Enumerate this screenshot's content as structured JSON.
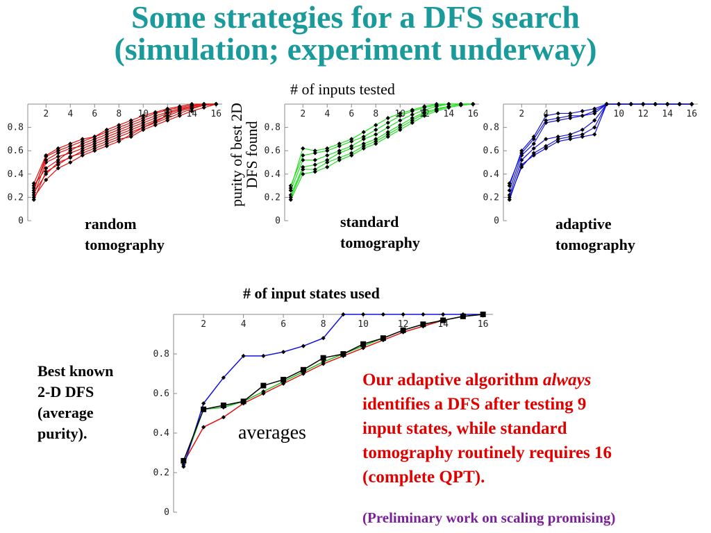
{
  "title": {
    "line1": "Some strategies for a DFS search",
    "line2": "(simulation; experiment underway)"
  },
  "top_axis_label": "# of inputs tested",
  "rotated_ylabel": {
    "line1": "purity of best 2D",
    "line2": "DFS found"
  },
  "top_panels": [
    {
      "label_line1": "random",
      "label_line2": "tomography",
      "color": "#e01010"
    },
    {
      "label_line1": "standard",
      "label_line2": "tomography",
      "color": "#20e020"
    },
    {
      "label_line1": "adaptive",
      "label_line2": "tomography",
      "color": "#1010e0"
    }
  ],
  "bottom_axis_label": "# of input states used",
  "bottom_ylabel": {
    "line1": "Best known",
    "line2": "2-D DFS",
    "line3": "(average",
    "line4": "purity)."
  },
  "averages_label": "averages",
  "conclusion": {
    "part1": "Our adaptive algorithm ",
    "emph": "always",
    "line2": "identifies a DFS after testing 9",
    "line3": "input states, while standard",
    "line4": "tomography routinely requires 16",
    "line5": "(complete QPT)."
  },
  "note": "(Preliminary work on scaling promising)",
  "chart_data": [
    {
      "type": "line",
      "name": "random tomography",
      "x": [
        1,
        2,
        3,
        4,
        5,
        6,
        7,
        8,
        9,
        10,
        11,
        12,
        13,
        14,
        15,
        16
      ],
      "ylim": [
        0,
        1
      ],
      "xticks": [
        2,
        4,
        6,
        8,
        10,
        12,
        14,
        16
      ],
      "yticks": [
        0,
        0.2,
        0.4,
        0.6,
        0.8
      ],
      "series": [
        {
          "values": [
            0.18,
            0.42,
            0.48,
            0.55,
            0.58,
            0.62,
            0.66,
            0.7,
            0.72,
            0.78,
            0.82,
            0.86,
            0.9,
            0.94,
            0.97,
            1.0
          ]
        },
        {
          "values": [
            0.22,
            0.5,
            0.55,
            0.58,
            0.62,
            0.66,
            0.7,
            0.74,
            0.78,
            0.82,
            0.86,
            0.9,
            0.94,
            0.97,
            0.99,
            1.0
          ]
        },
        {
          "values": [
            0.26,
            0.55,
            0.6,
            0.64,
            0.68,
            0.72,
            0.76,
            0.8,
            0.84,
            0.88,
            0.92,
            0.95,
            0.97,
            0.99,
            1.0,
            1.0
          ]
        },
        {
          "values": [
            0.3,
            0.45,
            0.52,
            0.6,
            0.66,
            0.7,
            0.74,
            0.78,
            0.82,
            0.86,
            0.9,
            0.93,
            0.96,
            0.98,
            1.0,
            1.0
          ]
        },
        {
          "values": [
            0.2,
            0.35,
            0.45,
            0.5,
            0.56,
            0.6,
            0.64,
            0.68,
            0.74,
            0.8,
            0.85,
            0.9,
            0.94,
            0.97,
            0.99,
            1.0
          ]
        },
        {
          "values": [
            0.32,
            0.56,
            0.62,
            0.66,
            0.7,
            0.72,
            0.78,
            0.82,
            0.86,
            0.9,
            0.93,
            0.96,
            0.98,
            1.0,
            1.0,
            1.0
          ]
        },
        {
          "values": [
            0.24,
            0.4,
            0.5,
            0.54,
            0.6,
            0.64,
            0.68,
            0.72,
            0.76,
            0.8,
            0.84,
            0.88,
            0.92,
            0.96,
            0.99,
            1.0
          ]
        },
        {
          "values": [
            0.28,
            0.52,
            0.58,
            0.62,
            0.64,
            0.68,
            0.72,
            0.76,
            0.8,
            0.84,
            0.88,
            0.92,
            0.95,
            0.98,
            1.0,
            1.0
          ]
        }
      ]
    },
    {
      "type": "line",
      "name": "standard tomography",
      "x": [
        1,
        2,
        3,
        4,
        5,
        6,
        7,
        8,
        9,
        10,
        11,
        12,
        13,
        14,
        15,
        16
      ],
      "ylim": [
        0,
        1
      ],
      "xticks": [
        2,
        4,
        6,
        8,
        10,
        12,
        14,
        16
      ],
      "yticks": [
        0,
        0.2,
        0.4,
        0.6,
        0.8
      ],
      "series": [
        {
          "values": [
            0.18,
            0.4,
            0.42,
            0.46,
            0.52,
            0.56,
            0.62,
            0.66,
            0.72,
            0.78,
            0.84,
            0.9,
            0.94,
            0.97,
            0.99,
            1.0
          ]
        },
        {
          "values": [
            0.22,
            0.46,
            0.48,
            0.52,
            0.58,
            0.62,
            0.66,
            0.7,
            0.76,
            0.82,
            0.88,
            0.93,
            0.96,
            0.98,
            1.0,
            1.0
          ]
        },
        {
          "values": [
            0.26,
            0.52,
            0.52,
            0.56,
            0.6,
            0.64,
            0.7,
            0.74,
            0.8,
            0.86,
            0.91,
            0.95,
            0.98,
            1.0,
            1.0,
            1.0
          ]
        },
        {
          "values": [
            0.3,
            0.56,
            0.58,
            0.6,
            0.64,
            0.68,
            0.72,
            0.78,
            0.84,
            0.9,
            0.94,
            0.97,
            0.99,
            1.0,
            1.0,
            1.0
          ]
        },
        {
          "values": [
            0.2,
            0.44,
            0.44,
            0.5,
            0.54,
            0.58,
            0.64,
            0.68,
            0.74,
            0.8,
            0.86,
            0.92,
            0.95,
            0.98,
            1.0,
            1.0
          ]
        },
        {
          "values": [
            0.28,
            0.62,
            0.6,
            0.62,
            0.66,
            0.7,
            0.76,
            0.82,
            0.88,
            0.92,
            0.95,
            0.98,
            1.0,
            1.0,
            1.0,
            1.0
          ]
        }
      ]
    },
    {
      "type": "line",
      "name": "adaptive tomography",
      "x": [
        1,
        2,
        3,
        4,
        5,
        6,
        7,
        8,
        9,
        10,
        11,
        12,
        13,
        14,
        15,
        16
      ],
      "ylim": [
        0,
        1
      ],
      "xticks": [
        2,
        4,
        10,
        12,
        14,
        16
      ],
      "yticks": [
        0,
        0.2,
        0.4,
        0.6,
        0.8
      ],
      "series": [
        {
          "values": [
            0.18,
            0.48,
            0.56,
            0.62,
            0.68,
            0.7,
            0.72,
            0.74,
            1.0,
            1.0,
            1.0,
            1.0,
            1.0,
            1.0,
            1.0,
            1.0
          ]
        },
        {
          "values": [
            0.22,
            0.52,
            0.62,
            0.7,
            0.72,
            0.74,
            0.78,
            0.86,
            1.0,
            1.0,
            1.0,
            1.0,
            1.0,
            1.0,
            1.0,
            1.0
          ]
        },
        {
          "values": [
            0.26,
            0.56,
            0.66,
            0.84,
            0.86,
            0.88,
            0.9,
            0.92,
            1.0,
            1.0,
            1.0,
            1.0,
            1.0,
            1.0,
            1.0,
            1.0
          ]
        },
        {
          "values": [
            0.3,
            0.6,
            0.72,
            0.9,
            0.92,
            0.92,
            0.94,
            0.96,
            1.0,
            1.0,
            1.0,
            1.0,
            1.0,
            1.0,
            1.0,
            1.0
          ]
        },
        {
          "values": [
            0.2,
            0.46,
            0.58,
            0.64,
            0.7,
            0.72,
            0.74,
            0.8,
            1.0,
            1.0,
            1.0,
            1.0,
            1.0,
            1.0,
            1.0,
            1.0
          ]
        },
        {
          "values": [
            0.32,
            0.58,
            0.7,
            0.86,
            0.88,
            0.9,
            0.9,
            0.94,
            1.0,
            1.0,
            1.0,
            1.0,
            1.0,
            1.0,
            1.0,
            1.0
          ]
        }
      ]
    },
    {
      "type": "line",
      "name": "averages",
      "x": [
        1,
        2,
        3,
        4,
        5,
        6,
        7,
        8,
        9,
        10,
        11,
        12,
        13,
        14,
        15,
        16
      ],
      "xticks": [
        2,
        4,
        6,
        8,
        10,
        12,
        14,
        16
      ],
      "yticks": [
        0,
        0.2,
        0.4,
        0.6,
        0.8
      ],
      "ylim": [
        0,
        1
      ],
      "series": [
        {
          "color": "#e01010",
          "values": [
            0.25,
            0.43,
            0.48,
            0.55,
            0.6,
            0.65,
            0.7,
            0.75,
            0.79,
            0.83,
            0.87,
            0.91,
            0.94,
            0.97,
            0.99,
            1.0
          ]
        },
        {
          "color": "#20c020",
          "values": [
            0.24,
            0.52,
            0.53,
            0.56,
            0.61,
            0.66,
            0.71,
            0.76,
            0.8,
            0.84,
            0.88,
            0.92,
            0.95,
            0.97,
            0.99,
            1.0
          ]
        },
        {
          "color": "#1010e0",
          "values": [
            0.23,
            0.55,
            0.68,
            0.79,
            0.79,
            0.81,
            0.84,
            0.88,
            1.0,
            1.0,
            1.0,
            1.0,
            1.0,
            1.0,
            1.0,
            1.0
          ]
        },
        {
          "color": "#000000",
          "values": [
            0.26,
            0.52,
            0.54,
            0.56,
            0.64,
            0.67,
            0.72,
            0.78,
            0.8,
            0.85,
            0.88,
            0.92,
            0.95,
            0.97,
            0.99,
            1.0
          ]
        }
      ]
    }
  ]
}
